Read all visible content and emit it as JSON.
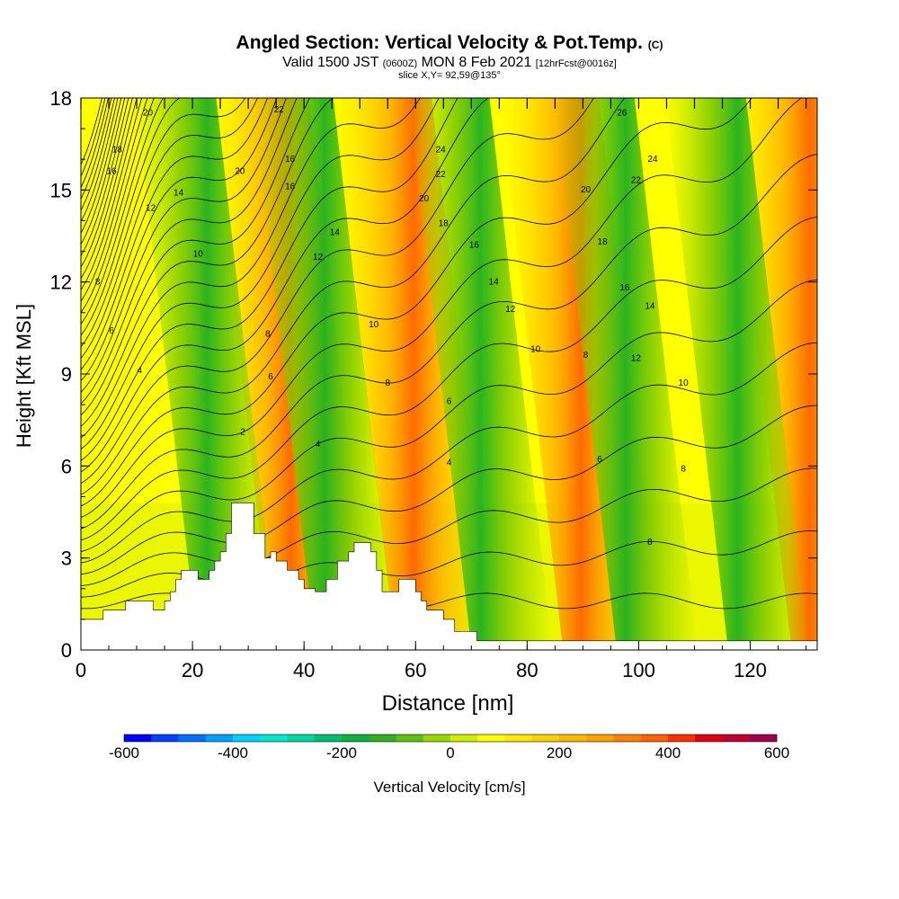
{
  "header": {
    "title": "Angled Section: Vertical Velocity & Pot.Temp.",
    "title_unit": "(C)",
    "subtitle_main": "Valid 1500 JST",
    "subtitle_utc": "(0600Z)",
    "subtitle_date": "MON 8 Feb 2021",
    "subtitle_fcst": "[12hrFcst@0016z]",
    "slice_label": "slice X,Y= 92,59@135°"
  },
  "chart_data": {
    "type": "heatmap",
    "title": "Angled Section: Vertical Velocity & Pot.Temp.",
    "xlabel": "Distance [nm]",
    "ylabel": "Height [Kft MSL]",
    "xlim": [
      0,
      132
    ],
    "ylim": [
      0,
      18
    ],
    "x_ticks": [
      0,
      20,
      40,
      60,
      80,
      100,
      120
    ],
    "y_ticks": [
      0,
      3,
      6,
      9,
      12,
      15,
      18
    ],
    "colorbar": {
      "label": "Vertical Velocity [cm/s]",
      "range": [
        -600,
        600
      ],
      "step": 50,
      "tick_labels": [
        "-600",
        "-400",
        "-200",
        "0",
        "200",
        "400",
        "600"
      ],
      "colors": [
        "#0000ff",
        "#0040ff",
        "#0070ff",
        "#00a0ff",
        "#00d0ff",
        "#00e8d0",
        "#00d8a0",
        "#00c070",
        "#10b040",
        "#30b020",
        "#60c010",
        "#98d800",
        "#d0ee00",
        "#ffff00",
        "#ffe800",
        "#ffd000",
        "#ffb800",
        "#ffa000",
        "#ff8000",
        "#ff6000",
        "#ff3000",
        "#e00010",
        "#c00030",
        "#a00050",
        "#800070",
        "#600080"
      ]
    },
    "terrain_kft": [
      [
        0,
        1.0
      ],
      [
        4,
        1.0
      ],
      [
        4,
        1.3
      ],
      [
        8,
        1.3
      ],
      [
        8,
        1.6
      ],
      [
        13,
        1.6
      ],
      [
        13,
        1.3
      ],
      [
        15,
        1.3
      ],
      [
        15,
        1.6
      ],
      [
        16,
        1.6
      ],
      [
        16,
        1.9
      ],
      [
        17,
        1.9
      ],
      [
        17,
        2.3
      ],
      [
        18,
        2.3
      ],
      [
        18,
        2.6
      ],
      [
        21,
        2.6
      ],
      [
        21,
        2.3
      ],
      [
        23,
        2.3
      ],
      [
        23,
        2.6
      ],
      [
        24,
        2.6
      ],
      [
        24,
        2.9
      ],
      [
        25,
        2.9
      ],
      [
        25,
        3.2
      ],
      [
        26,
        3.2
      ],
      [
        26,
        3.8
      ],
      [
        27,
        3.8
      ],
      [
        27,
        4.8
      ],
      [
        31,
        4.8
      ],
      [
        31,
        3.8
      ],
      [
        33,
        3.8
      ],
      [
        33,
        3.0
      ],
      [
        34,
        3.0
      ],
      [
        34,
        3.2
      ],
      [
        35,
        3.2
      ],
      [
        35,
        2.9
      ],
      [
        37,
        2.9
      ],
      [
        37,
        2.6
      ],
      [
        39,
        2.6
      ],
      [
        39,
        2.3
      ],
      [
        40,
        2.3
      ],
      [
        40,
        2.0
      ],
      [
        42,
        2.0
      ],
      [
        42,
        1.9
      ],
      [
        44,
        1.9
      ],
      [
        44,
        2.3
      ],
      [
        46,
        2.3
      ],
      [
        46,
        2.9
      ],
      [
        48,
        2.9
      ],
      [
        48,
        3.2
      ],
      [
        49,
        3.2
      ],
      [
        49,
        3.5
      ],
      [
        52,
        3.5
      ],
      [
        52,
        3.2
      ],
      [
        53,
        3.2
      ],
      [
        53,
        2.6
      ],
      [
        54,
        2.6
      ],
      [
        54,
        1.9
      ],
      [
        57,
        1.9
      ],
      [
        57,
        2.3
      ],
      [
        60,
        2.3
      ],
      [
        60,
        1.9
      ],
      [
        61,
        1.9
      ],
      [
        61,
        1.6
      ],
      [
        62,
        1.6
      ],
      [
        62,
        1.3
      ],
      [
        65,
        1.3
      ],
      [
        65,
        1.0
      ],
      [
        67,
        1.0
      ],
      [
        67,
        0.6
      ],
      [
        71,
        0.6
      ],
      [
        71,
        0.3
      ],
      [
        132,
        0.3
      ]
    ],
    "updraft_bands_x": [
      32,
      54,
      84,
      125
    ],
    "downdraft_bands_x": [
      17,
      38,
      66,
      92,
      112
    ],
    "theta_contours": [
      {
        "x": 35.5,
        "y": 17.6,
        "label": "22"
      },
      {
        "x": 28.5,
        "y": 15.6,
        "label": "20"
      },
      {
        "x": 37.5,
        "y": 16.0,
        "label": "16"
      },
      {
        "x": 37.5,
        "y": 15.1,
        "label": "16"
      },
      {
        "x": 12,
        "y": 17.5,
        "label": "20"
      },
      {
        "x": 6.5,
        "y": 16.3,
        "label": "18"
      },
      {
        "x": 5.5,
        "y": 15.6,
        "label": "16"
      },
      {
        "x": 17.5,
        "y": 14.9,
        "label": "14"
      },
      {
        "x": 12.5,
        "y": 14.4,
        "label": "12"
      },
      {
        "x": 21,
        "y": 12.9,
        "label": "10"
      },
      {
        "x": 3,
        "y": 12.0,
        "label": "8"
      },
      {
        "x": 5.5,
        "y": 10.4,
        "label": "6"
      },
      {
        "x": 10.5,
        "y": 9.1,
        "label": "4"
      },
      {
        "x": 29,
        "y": 7.1,
        "label": "2"
      },
      {
        "x": 33.5,
        "y": 10.3,
        "label": "8"
      },
      {
        "x": 34,
        "y": 8.9,
        "label": "6"
      },
      {
        "x": 42.5,
        "y": 6.7,
        "label": "4"
      },
      {
        "x": 42.5,
        "y": 12.8,
        "label": "12"
      },
      {
        "x": 45.5,
        "y": 13.6,
        "label": "14"
      },
      {
        "x": 52.5,
        "y": 10.6,
        "label": "10"
      },
      {
        "x": 55,
        "y": 8.7,
        "label": "8"
      },
      {
        "x": 66,
        "y": 8.1,
        "label": "6"
      },
      {
        "x": 66,
        "y": 6.1,
        "label": "4"
      },
      {
        "x": 61.5,
        "y": 14.7,
        "label": "20"
      },
      {
        "x": 65,
        "y": 13.9,
        "label": "18"
      },
      {
        "x": 70.5,
        "y": 13.2,
        "label": "16"
      },
      {
        "x": 74,
        "y": 12.0,
        "label": "14"
      },
      {
        "x": 77,
        "y": 11.1,
        "label": "12"
      },
      {
        "x": 81.5,
        "y": 9.8,
        "label": "10"
      },
      {
        "x": 90.5,
        "y": 9.6,
        "label": "8"
      },
      {
        "x": 93,
        "y": 6.2,
        "label": "6"
      },
      {
        "x": 102,
        "y": 3.5,
        "label": "8"
      },
      {
        "x": 64.5,
        "y": 16.3,
        "label": "24"
      },
      {
        "x": 64.5,
        "y": 15.5,
        "label": "22"
      },
      {
        "x": 97,
        "y": 17.5,
        "label": "26"
      },
      {
        "x": 102.5,
        "y": 16.0,
        "label": "24"
      },
      {
        "x": 99.5,
        "y": 15.3,
        "label": "22"
      },
      {
        "x": 90.5,
        "y": 15.0,
        "label": "20"
      },
      {
        "x": 93.5,
        "y": 13.3,
        "label": "18"
      },
      {
        "x": 97.5,
        "y": 11.8,
        "label": "16"
      },
      {
        "x": 102,
        "y": 11.2,
        "label": "14"
      },
      {
        "x": 99.5,
        "y": 9.5,
        "label": "12"
      },
      {
        "x": 108,
        "y": 8.7,
        "label": "10"
      },
      {
        "x": 108,
        "y": 5.9,
        "label": "8"
      }
    ]
  }
}
